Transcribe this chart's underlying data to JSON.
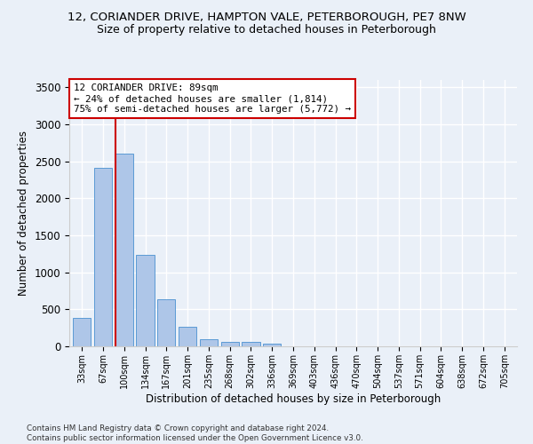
{
  "title_line1": "12, CORIANDER DRIVE, HAMPTON VALE, PETERBOROUGH, PE7 8NW",
  "title_line2": "Size of property relative to detached houses in Peterborough",
  "xlabel": "Distribution of detached houses by size in Peterborough",
  "ylabel": "Number of detached properties",
  "categories": [
    "33sqm",
    "67sqm",
    "100sqm",
    "134sqm",
    "167sqm",
    "201sqm",
    "235sqm",
    "268sqm",
    "302sqm",
    "336sqm",
    "369sqm",
    "403sqm",
    "436sqm",
    "470sqm",
    "504sqm",
    "537sqm",
    "571sqm",
    "604sqm",
    "638sqm",
    "672sqm",
    "705sqm"
  ],
  "values": [
    390,
    2410,
    2600,
    1240,
    640,
    260,
    100,
    60,
    55,
    40,
    0,
    0,
    0,
    0,
    0,
    0,
    0,
    0,
    0,
    0,
    0
  ],
  "bar_color": "#aec6e8",
  "bar_edge_color": "#5b9bd5",
  "annotation_line1": "12 CORIANDER DRIVE: 89sqm",
  "annotation_line2": "← 24% of detached houses are smaller (1,814)",
  "annotation_line3": "75% of semi-detached houses are larger (5,772) →",
  "vline_x_idx": 1.58,
  "vline_color": "#cc0000",
  "box_color": "#cc0000",
  "ylim": [
    0,
    3600
  ],
  "yticks": [
    0,
    500,
    1000,
    1500,
    2000,
    2500,
    3000,
    3500
  ],
  "background_color": "#eaf0f8",
  "grid_color": "#ffffff",
  "footer": "Contains HM Land Registry data © Crown copyright and database right 2024.\nContains public sector information licensed under the Open Government Licence v3.0.",
  "title_fontsize": 9.5,
  "subtitle_fontsize": 9
}
